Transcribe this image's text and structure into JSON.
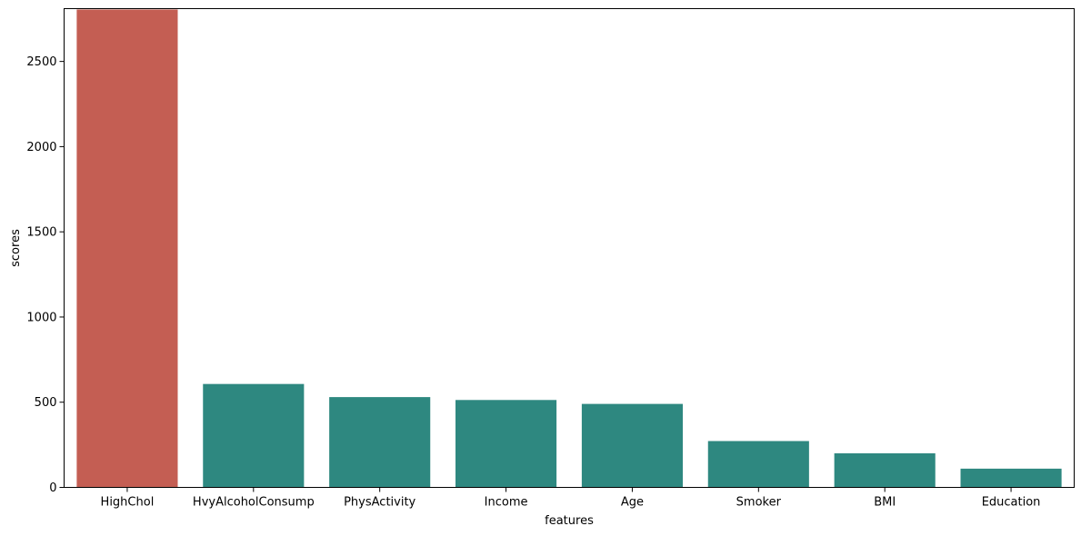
{
  "chart_data": {
    "type": "bar",
    "title": "",
    "xlabel": "features",
    "ylabel": "scores",
    "categories": [
      "HighChol",
      "HvyAlcoholConsump",
      "PhysActivity",
      "Income",
      "Age",
      "Smoker",
      "BMI",
      "Education"
    ],
    "values": [
      2805,
      607,
      530,
      513,
      490,
      272,
      200,
      110
    ],
    "ylim": [
      0,
      2810
    ],
    "yticks": [
      0,
      500,
      1000,
      1500,
      2000,
      2500
    ],
    "bar_colors": [
      "#c45e53",
      "#2e8880",
      "#2e8880",
      "#2e8880",
      "#2e8880",
      "#2e8880",
      "#2e8880",
      "#2e8880"
    ],
    "grid": false,
    "legend": "none"
  }
}
